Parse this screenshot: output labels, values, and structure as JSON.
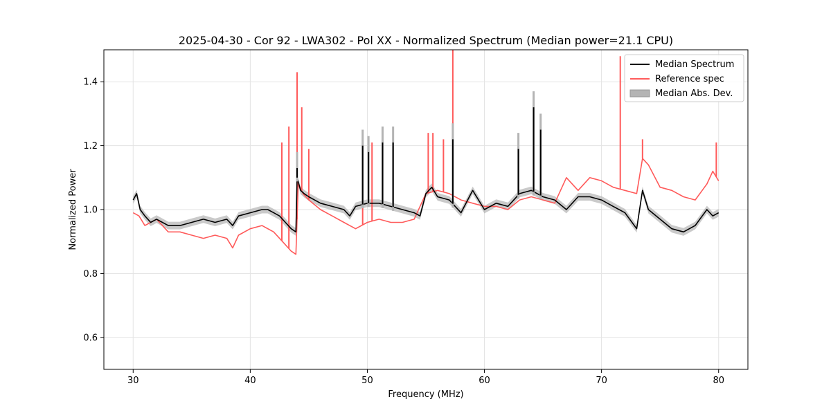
{
  "chart_data": {
    "type": "line",
    "title": "2025-04-30 - Cor 92 - LWA302 - Pol XX - Normalized Spectrum (Median power=21.1 CPU)",
    "xlabel": "Frequency (MHz)",
    "ylabel": "Normalized Power",
    "xlim": [
      27.5,
      82.5
    ],
    "ylim": [
      0.5,
      1.5
    ],
    "xticks": [
      30,
      40,
      50,
      60,
      70,
      80
    ],
    "yticks": [
      0.6,
      0.8,
      1.0,
      1.2,
      1.4
    ],
    "xtick_labels": [
      "30",
      "40",
      "50",
      "60",
      "70",
      "80"
    ],
    "ytick_labels": [
      "0.6",
      "0.8",
      "1.0",
      "1.2",
      "1.4"
    ],
    "grid": true,
    "legend_position": "top-right",
    "legend": [
      "Median Spectrum",
      "Reference spec",
      "Median Abs. Dev."
    ],
    "series": [
      {
        "name": "Median Spectrum",
        "color": "#000000",
        "x": [
          30.0,
          30.3,
          30.6,
          31.0,
          31.5,
          32.0,
          32.5,
          33.0,
          33.5,
          34.0,
          35.0,
          36.0,
          37.0,
          38.0,
          38.5,
          39.0,
          40.0,
          41.0,
          41.5,
          42.0,
          42.5,
          43.0,
          43.5,
          43.9,
          44.0,
          44.3,
          44.6,
          45.0,
          46.0,
          47.0,
          48.0,
          48.5,
          49.0,
          50.0,
          51.0,
          52.0,
          53.0,
          54.0,
          54.5,
          55.0,
          55.5,
          56.0,
          57.0,
          57.5,
          58.0,
          59.0,
          60.0,
          61.0,
          62.0,
          63.0,
          64.0,
          65.0,
          66.0,
          67.0,
          68.0,
          69.0,
          70.0,
          71.0,
          72.0,
          73.0,
          73.5,
          74.0,
          75.0,
          76.0,
          77.0,
          78.0,
          79.0,
          79.5,
          80.0
        ],
        "y": [
          1.03,
          1.05,
          1.0,
          0.98,
          0.96,
          0.97,
          0.96,
          0.95,
          0.95,
          0.95,
          0.96,
          0.97,
          0.96,
          0.97,
          0.95,
          0.98,
          0.99,
          1.0,
          1.0,
          0.99,
          0.98,
          0.96,
          0.94,
          0.93,
          1.1,
          1.06,
          1.05,
          1.04,
          1.02,
          1.01,
          1.0,
          0.98,
          1.01,
          1.02,
          1.02,
          1.01,
          1.0,
          0.99,
          0.98,
          1.05,
          1.07,
          1.04,
          1.03,
          1.01,
          0.99,
          1.06,
          1.0,
          1.02,
          1.01,
          1.05,
          1.06,
          1.04,
          1.03,
          1.0,
          1.04,
          1.04,
          1.03,
          1.01,
          0.99,
          0.94,
          1.06,
          1.0,
          0.97,
          0.94,
          0.93,
          0.95,
          1.0,
          0.98,
          0.99
        ],
        "spikes": [
          {
            "x": 44.0,
            "y": 1.13
          },
          {
            "x": 49.6,
            "y": 1.2
          },
          {
            "x": 50.1,
            "y": 1.18
          },
          {
            "x": 51.3,
            "y": 1.21
          },
          {
            "x": 52.2,
            "y": 1.21
          },
          {
            "x": 57.3,
            "y": 1.22
          },
          {
            "x": 62.9,
            "y": 1.19
          },
          {
            "x": 64.2,
            "y": 1.32
          },
          {
            "x": 64.8,
            "y": 1.25
          }
        ]
      },
      {
        "name": "Reference spec",
        "color": "#ff5a5a",
        "x": [
          30.0,
          30.5,
          31.0,
          31.5,
          32.0,
          33.0,
          34.0,
          35.0,
          36.0,
          37.0,
          38.0,
          38.5,
          39.0,
          40.0,
          41.0,
          42.0,
          43.0,
          43.5,
          43.9,
          44.1,
          44.5,
          45.0,
          46.0,
          47.0,
          48.0,
          49.0,
          50.0,
          51.0,
          52.0,
          53.0,
          54.0,
          55.0,
          56.0,
          57.0,
          58.0,
          59.0,
          60.0,
          61.0,
          62.0,
          63.0,
          64.0,
          65.0,
          66.0,
          67.0,
          68.0,
          69.0,
          70.0,
          71.0,
          72.0,
          73.0,
          73.5,
          74.0,
          75.0,
          76.0,
          77.0,
          78.0,
          79.0,
          79.5,
          80.0
        ],
        "y": [
          0.99,
          0.98,
          0.95,
          0.96,
          0.97,
          0.93,
          0.93,
          0.92,
          0.91,
          0.92,
          0.91,
          0.88,
          0.92,
          0.94,
          0.95,
          0.93,
          0.89,
          0.87,
          0.86,
          1.08,
          1.05,
          1.03,
          1.0,
          0.98,
          0.96,
          0.94,
          0.96,
          0.97,
          0.96,
          0.96,
          0.97,
          1.05,
          1.06,
          1.05,
          1.03,
          1.02,
          1.01,
          1.01,
          1.0,
          1.03,
          1.04,
          1.03,
          1.02,
          1.1,
          1.06,
          1.1,
          1.09,
          1.07,
          1.06,
          1.05,
          1.16,
          1.14,
          1.07,
          1.06,
          1.04,
          1.03,
          1.08,
          1.12,
          1.09
        ],
        "spikes": [
          {
            "x": 42.7,
            "y": 1.21
          },
          {
            "x": 43.3,
            "y": 1.26
          },
          {
            "x": 44.0,
            "y": 1.43
          },
          {
            "x": 44.4,
            "y": 1.32
          },
          {
            "x": 45.0,
            "y": 1.19
          },
          {
            "x": 49.6,
            "y": 1.2
          },
          {
            "x": 50.4,
            "y": 1.21
          },
          {
            "x": 55.2,
            "y": 1.24
          },
          {
            "x": 55.6,
            "y": 1.24
          },
          {
            "x": 56.5,
            "y": 1.22
          },
          {
            "x": 57.3,
            "y": 1.5
          },
          {
            "x": 71.6,
            "y": 1.48
          },
          {
            "x": 73.5,
            "y": 1.22
          },
          {
            "x": 79.8,
            "y": 1.21
          }
        ]
      }
    ],
    "band": {
      "name": "Median Abs. Dev.",
      "color": "#b4b4b4",
      "half_width": 0.012
    }
  }
}
